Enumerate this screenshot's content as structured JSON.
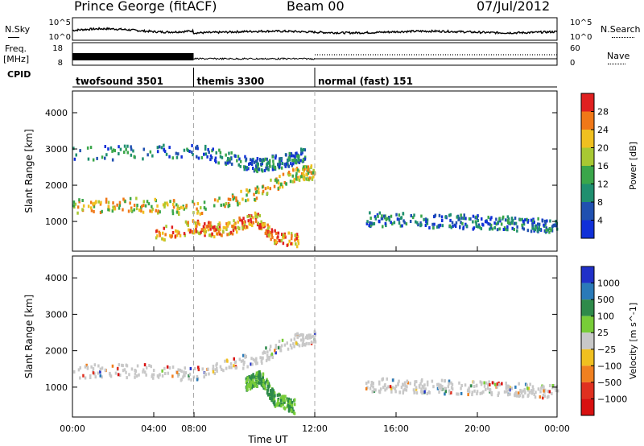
{
  "header": {
    "station": "Prince George (fitACF)",
    "beam": "Beam 00",
    "date": "07/Jul/2012"
  },
  "sidebars": {
    "left_nsky": "N.Sky",
    "left_freq_1": "Freq.",
    "left_freq_2": "[MHz]",
    "left_cpid": "CPID",
    "right_nsearch": "N.Search",
    "right_nave": "Nave"
  },
  "strip_ticks": {
    "noise_left": [
      "10^5",
      "10^0"
    ],
    "noise_right": [
      "10^5",
      "10^0"
    ],
    "freq_left": [
      "18",
      "8"
    ],
    "nave_right": [
      "60",
      "0"
    ]
  },
  "cpid_segments": [
    {
      "label": "twofsound 3501",
      "start_h": 0,
      "end_h": 6
    },
    {
      "label": "themis 3300",
      "start_h": 6,
      "end_h": 12
    },
    {
      "label": "normal (fast) 151",
      "start_h": 12,
      "end_h": 24
    }
  ],
  "chart_data": [
    {
      "type": "heatmap",
      "title": "",
      "xlabel": "Time UT",
      "ylabel": "Slant Range [km]",
      "xlim": [
        0,
        24
      ],
      "ylim": [
        180,
        4600
      ],
      "xticks": [
        "00:00",
        "04:00",
        "08:00",
        "12:00",
        "16:00",
        "20:00",
        "00:00"
      ],
      "yticks": [
        1000,
        2000,
        3000,
        4000
      ],
      "colorbar": {
        "label": "Power [dB]",
        "ticks": [
          "4",
          "8",
          "12",
          "16",
          "20",
          "24",
          "28"
        ],
        "colors": [
          "#1030d8",
          "#2050b0",
          "#1f8f6f",
          "#3aa64a",
          "#a8c832",
          "#f0c020",
          "#f07818",
          "#e02020"
        ]
      },
      "features": [
        {
          "t": [
            0,
            3,
            6,
            9,
            11,
            12
          ],
          "range_km": [
            1450,
            1500,
            1400,
            1800,
            2350,
            2400
          ],
          "power_db": 18
        },
        {
          "t": [
            0,
            6,
            9,
            10.5,
            11.5
          ],
          "range_km": [
            2900,
            3000,
            2600,
            2700,
            2900
          ],
          "power_db": 8
        },
        {
          "t": [
            4,
            6,
            7,
            8,
            9,
            10,
            11.2
          ],
          "range_km": [
            650,
            900,
            800,
            900,
            1150,
            600,
            500
          ],
          "power_db": 24
        },
        {
          "t": [
            14.5,
            18,
            21,
            24
          ],
          "range_km": [
            1100,
            1050,
            1000,
            900
          ],
          "power_db": 6
        }
      ]
    },
    {
      "type": "heatmap",
      "title": "",
      "xlabel": "Time UT",
      "ylabel": "Slant Range [km]",
      "xlim": [
        0,
        24
      ],
      "ylim": [
        180,
        4600
      ],
      "xticks": [
        "00:00",
        "04:00",
        "08:00",
        "12:00",
        "16:00",
        "20:00",
        "00:00"
      ],
      "yticks": [
        1000,
        2000,
        3000,
        4000
      ],
      "colorbar": {
        "label": "Velocity [m s^-1]",
        "ticks": [
          "1000",
          "500",
          "100",
          "25",
          "−25",
          "−100",
          "−500",
          "−1000"
        ],
        "colors": [
          "#2030c8",
          "#2a7ab8",
          "#2e8a4a",
          "#78cc38",
          "#c8c8c8",
          "#f0c020",
          "#f08020",
          "#e03020",
          "#d81010"
        ]
      },
      "features": [
        {
          "t": [
            0,
            3,
            6,
            9,
            11,
            12
          ],
          "range_km": [
            1450,
            1500,
            1400,
            1800,
            2350,
            2400
          ],
          "velocity_ms": 0
        },
        {
          "t": [
            8.5,
            9.3,
            10,
            11
          ],
          "range_km": [
            1100,
            1300,
            700,
            500
          ],
          "velocity_ms": 200
        },
        {
          "t": [
            14.5,
            18,
            21,
            24
          ],
          "range_km": [
            1100,
            1050,
            1000,
            900
          ],
          "velocity_ms": 0
        }
      ]
    }
  ]
}
